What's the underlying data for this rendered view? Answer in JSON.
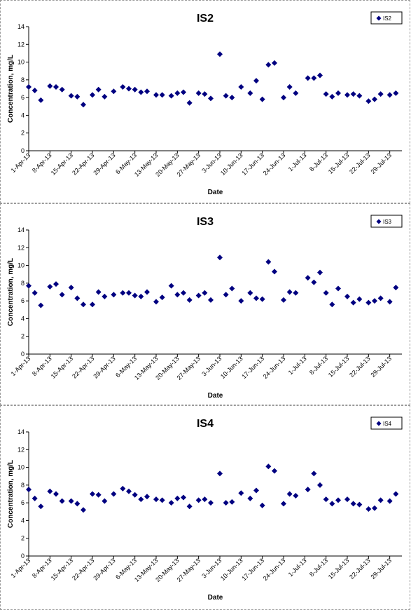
{
  "chart_data": [
    {
      "type": "scatter",
      "title": "IS2",
      "xlabel": "Date",
      "ylabel": "Concentration, mg/L",
      "ylim": [
        0,
        14
      ],
      "yticks": [
        0,
        2,
        4,
        6,
        8,
        10,
        12,
        14
      ],
      "xlim": [
        "2013-04-01",
        "2013-08-02"
      ],
      "xtick_labels": [
        "1-Apr-13",
        "8-Apr-13",
        "15-Apr-13",
        "22-Apr-13",
        "29-Apr-13",
        "6-May-13",
        "13-May-13",
        "20-May-13",
        "27-May-13",
        "3-Jun-13",
        "10-Jun-13",
        "17-Jun-13",
        "24-Jun-13",
        "1-Jul-13",
        "8-Jul-13",
        "15-Jul-13",
        "22-Jul-13",
        "29-Jul-13"
      ],
      "xtick_dates": [
        "2013-04-01",
        "2013-04-08",
        "2013-04-15",
        "2013-04-22",
        "2013-04-29",
        "2013-05-06",
        "2013-05-13",
        "2013-05-20",
        "2013-05-27",
        "2013-06-03",
        "2013-06-10",
        "2013-06-17",
        "2013-06-24",
        "2013-07-01",
        "2013-07-08",
        "2013-07-15",
        "2013-07-22",
        "2013-07-29"
      ],
      "grid": false,
      "legend_position": "top-right",
      "marker_color": "#000080",
      "series": [
        {
          "name": "IS2",
          "points": [
            [
              "2013-04-01",
              7.2
            ],
            [
              "2013-04-03",
              6.8
            ],
            [
              "2013-04-05",
              5.7
            ],
            [
              "2013-04-08",
              7.3
            ],
            [
              "2013-04-10",
              7.2
            ],
            [
              "2013-04-12",
              6.9
            ],
            [
              "2013-04-15",
              6.2
            ],
            [
              "2013-04-17",
              6.1
            ],
            [
              "2013-04-19",
              5.2
            ],
            [
              "2013-04-22",
              6.3
            ],
            [
              "2013-04-24",
              6.9
            ],
            [
              "2013-04-26",
              6.1
            ],
            [
              "2013-04-29",
              6.7
            ],
            [
              "2013-05-02",
              7.2
            ],
            [
              "2013-05-04",
              7.0
            ],
            [
              "2013-05-06",
              6.9
            ],
            [
              "2013-05-08",
              6.6
            ],
            [
              "2013-05-10",
              6.7
            ],
            [
              "2013-05-13",
              6.3
            ],
            [
              "2013-05-15",
              6.3
            ],
            [
              "2013-05-18",
              6.2
            ],
            [
              "2013-05-20",
              6.5
            ],
            [
              "2013-05-22",
              6.6
            ],
            [
              "2013-05-24",
              5.4
            ],
            [
              "2013-05-27",
              6.5
            ],
            [
              "2013-05-29",
              6.4
            ],
            [
              "2013-05-31",
              5.9
            ],
            [
              "2013-06-03",
              10.9
            ],
            [
              "2013-06-05",
              6.2
            ],
            [
              "2013-06-07",
              6.0
            ],
            [
              "2013-06-10",
              7.2
            ],
            [
              "2013-06-13",
              6.5
            ],
            [
              "2013-06-15",
              7.9
            ],
            [
              "2013-06-17",
              5.8
            ],
            [
              "2013-06-19",
              9.7
            ],
            [
              "2013-06-21",
              9.9
            ],
            [
              "2013-06-24",
              6.0
            ],
            [
              "2013-06-26",
              7.2
            ],
            [
              "2013-06-28",
              6.5
            ],
            [
              "2013-07-02",
              8.2
            ],
            [
              "2013-07-04",
              8.2
            ],
            [
              "2013-07-06",
              8.5
            ],
            [
              "2013-07-08",
              6.4
            ],
            [
              "2013-07-10",
              6.1
            ],
            [
              "2013-07-12",
              6.5
            ],
            [
              "2013-07-15",
              6.3
            ],
            [
              "2013-07-17",
              6.4
            ],
            [
              "2013-07-19",
              6.2
            ],
            [
              "2013-07-22",
              5.6
            ],
            [
              "2013-07-24",
              5.8
            ],
            [
              "2013-07-26",
              6.4
            ],
            [
              "2013-07-29",
              6.3
            ],
            [
              "2013-07-31",
              6.5
            ]
          ]
        }
      ]
    },
    {
      "type": "scatter",
      "title": "IS3",
      "xlabel": "Date",
      "ylabel": "Concentration, mg/L",
      "ylim": [
        0,
        14
      ],
      "yticks": [
        0,
        2,
        4,
        6,
        8,
        10,
        12,
        14
      ],
      "xlim": [
        "2013-04-01",
        "2013-08-02"
      ],
      "xtick_labels": [
        "1-Apr-13",
        "8-Apr-13",
        "15-Apr-13",
        "22-Apr-13",
        "29-Apr-13",
        "6-May-13",
        "13-May-13",
        "20-May-13",
        "27-May-13",
        "3-Jun-13",
        "10-Jun-13",
        "17-Jun-13",
        "24-Jun-13",
        "1-Jul-13",
        "8-Jul-13",
        "15-Jul-13",
        "22-Jul-13",
        "29-Jul-13"
      ],
      "xtick_dates": [
        "2013-04-01",
        "2013-04-08",
        "2013-04-15",
        "2013-04-22",
        "2013-04-29",
        "2013-05-06",
        "2013-05-13",
        "2013-05-20",
        "2013-05-27",
        "2013-06-03",
        "2013-06-10",
        "2013-06-17",
        "2013-06-24",
        "2013-07-01",
        "2013-07-08",
        "2013-07-15",
        "2013-07-22",
        "2013-07-29"
      ],
      "grid": false,
      "legend_position": "top-right",
      "marker_color": "#000080",
      "series": [
        {
          "name": "IS3",
          "points": [
            [
              "2013-04-01",
              7.7
            ],
            [
              "2013-04-03",
              6.9
            ],
            [
              "2013-04-05",
              5.5
            ],
            [
              "2013-04-08",
              7.6
            ],
            [
              "2013-04-10",
              7.9
            ],
            [
              "2013-04-12",
              6.7
            ],
            [
              "2013-04-15",
              7.5
            ],
            [
              "2013-04-17",
              6.3
            ],
            [
              "2013-04-19",
              5.6
            ],
            [
              "2013-04-22",
              5.6
            ],
            [
              "2013-04-24",
              7.0
            ],
            [
              "2013-04-26",
              6.5
            ],
            [
              "2013-04-29",
              6.7
            ],
            [
              "2013-05-02",
              6.9
            ],
            [
              "2013-05-04",
              6.9
            ],
            [
              "2013-05-06",
              6.6
            ],
            [
              "2013-05-08",
              6.5
            ],
            [
              "2013-05-10",
              7.0
            ],
            [
              "2013-05-13",
              5.9
            ],
            [
              "2013-05-15",
              6.4
            ],
            [
              "2013-05-18",
              7.7
            ],
            [
              "2013-05-20",
              6.7
            ],
            [
              "2013-05-22",
              6.9
            ],
            [
              "2013-05-24",
              6.1
            ],
            [
              "2013-05-27",
              6.6
            ],
            [
              "2013-05-29",
              6.9
            ],
            [
              "2013-05-31",
              6.1
            ],
            [
              "2013-06-03",
              10.9
            ],
            [
              "2013-06-05",
              6.7
            ],
            [
              "2013-06-07",
              7.4
            ],
            [
              "2013-06-10",
              6.0
            ],
            [
              "2013-06-13",
              6.9
            ],
            [
              "2013-06-15",
              6.3
            ],
            [
              "2013-06-17",
              6.2
            ],
            [
              "2013-06-19",
              10.4
            ],
            [
              "2013-06-21",
              9.3
            ],
            [
              "2013-06-24",
              6.1
            ],
            [
              "2013-06-26",
              7.0
            ],
            [
              "2013-06-28",
              6.9
            ],
            [
              "2013-07-02",
              8.6
            ],
            [
              "2013-07-04",
              8.1
            ],
            [
              "2013-07-06",
              9.2
            ],
            [
              "2013-07-08",
              6.9
            ],
            [
              "2013-07-10",
              5.6
            ],
            [
              "2013-07-12",
              7.4
            ],
            [
              "2013-07-15",
              6.5
            ],
            [
              "2013-07-17",
              5.8
            ],
            [
              "2013-07-19",
              6.2
            ],
            [
              "2013-07-22",
              5.8
            ],
            [
              "2013-07-24",
              6.0
            ],
            [
              "2013-07-26",
              6.3
            ],
            [
              "2013-07-29",
              5.9
            ],
            [
              "2013-07-31",
              7.5
            ]
          ]
        }
      ]
    },
    {
      "type": "scatter",
      "title": "IS4",
      "xlabel": "Date",
      "ylabel": "Concentration, mg/L",
      "ylim": [
        0,
        14
      ],
      "yticks": [
        0,
        2,
        4,
        6,
        8,
        10,
        12,
        14
      ],
      "xlim": [
        "2013-04-01",
        "2013-08-02"
      ],
      "xtick_labels": [
        "1-Apr-13",
        "8-Apr-13",
        "15-Apr-13",
        "22-Apr-13",
        "29-Apr-13",
        "6-May-13",
        "13-May-13",
        "20-May-13",
        "27-May-13",
        "3-Jun-13",
        "10-Jun-13",
        "17-Jun-13",
        "24-Jun-13",
        "1-Jul-13",
        "8-Jul-13",
        "15-Jul-13",
        "22-Jul-13",
        "29-Jul-13"
      ],
      "xtick_dates": [
        "2013-04-01",
        "2013-04-08",
        "2013-04-15",
        "2013-04-22",
        "2013-04-29",
        "2013-05-06",
        "2013-05-13",
        "2013-05-20",
        "2013-05-27",
        "2013-06-03",
        "2013-06-10",
        "2013-06-17",
        "2013-06-24",
        "2013-07-01",
        "2013-07-08",
        "2013-07-15",
        "2013-07-22",
        "2013-07-29"
      ],
      "grid": false,
      "legend_position": "top-right",
      "marker_color": "#000080",
      "series": [
        {
          "name": "IS4",
          "points": [
            [
              "2013-04-01",
              7.5
            ],
            [
              "2013-04-03",
              6.5
            ],
            [
              "2013-04-05",
              5.6
            ],
            [
              "2013-04-08",
              7.3
            ],
            [
              "2013-04-10",
              7.0
            ],
            [
              "2013-04-12",
              6.2
            ],
            [
              "2013-04-15",
              6.2
            ],
            [
              "2013-04-17",
              5.9
            ],
            [
              "2013-04-19",
              5.2
            ],
            [
              "2013-04-22",
              7.0
            ],
            [
              "2013-04-24",
              6.9
            ],
            [
              "2013-04-26",
              6.2
            ],
            [
              "2013-04-29",
              7.0
            ],
            [
              "2013-05-02",
              7.6
            ],
            [
              "2013-05-04",
              7.3
            ],
            [
              "2013-05-06",
              6.9
            ],
            [
              "2013-05-08",
              6.4
            ],
            [
              "2013-05-10",
              6.7
            ],
            [
              "2013-05-13",
              6.4
            ],
            [
              "2013-05-15",
              6.3
            ],
            [
              "2013-05-18",
              6.0
            ],
            [
              "2013-05-20",
              6.5
            ],
            [
              "2013-05-22",
              6.6
            ],
            [
              "2013-05-24",
              5.6
            ],
            [
              "2013-05-27",
              6.3
            ],
            [
              "2013-05-29",
              6.4
            ],
            [
              "2013-05-31",
              6.0
            ],
            [
              "2013-06-03",
              9.3
            ],
            [
              "2013-06-05",
              6.0
            ],
            [
              "2013-06-07",
              6.1
            ],
            [
              "2013-06-10",
              7.1
            ],
            [
              "2013-06-13",
              6.5
            ],
            [
              "2013-06-15",
              7.4
            ],
            [
              "2013-06-17",
              5.7
            ],
            [
              "2013-06-19",
              10.1
            ],
            [
              "2013-06-21",
              9.6
            ],
            [
              "2013-06-24",
              5.9
            ],
            [
              "2013-06-26",
              7.0
            ],
            [
              "2013-06-28",
              6.8
            ],
            [
              "2013-07-02",
              7.5
            ],
            [
              "2013-07-04",
              9.3
            ],
            [
              "2013-07-06",
              8.0
            ],
            [
              "2013-07-08",
              6.4
            ],
            [
              "2013-07-10",
              5.9
            ],
            [
              "2013-07-12",
              6.3
            ],
            [
              "2013-07-15",
              6.4
            ],
            [
              "2013-07-17",
              5.9
            ],
            [
              "2013-07-19",
              5.8
            ],
            [
              "2013-07-22",
              5.3
            ],
            [
              "2013-07-24",
              5.4
            ],
            [
              "2013-07-26",
              6.3
            ],
            [
              "2013-07-29",
              6.2
            ],
            [
              "2013-07-31",
              7.0
            ]
          ]
        }
      ]
    }
  ]
}
